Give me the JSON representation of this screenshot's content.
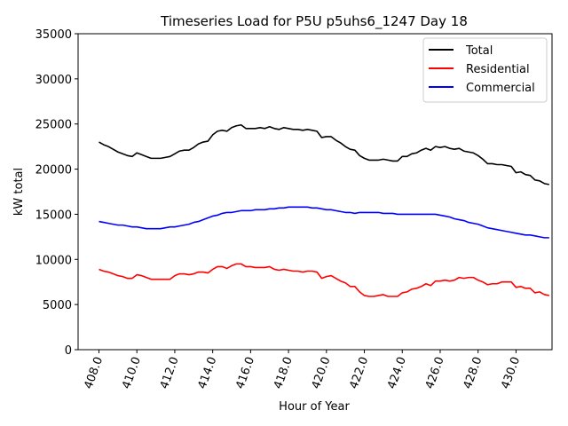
{
  "chart_data": {
    "type": "line",
    "title": "Timeseries Load for P5U p5uhs6_1247  Day 18",
    "xlabel": "Hour of Year",
    "ylabel": "kW total",
    "xlim": [
      406.9,
      431.9
    ],
    "ylim": [
      0,
      35000
    ],
    "xticks": [
      408,
      410,
      412,
      414,
      416,
      418,
      420,
      422,
      424,
      426,
      428,
      430
    ],
    "xtick_labels": [
      "408.0",
      "410.0",
      "412.0",
      "414.0",
      "416.0",
      "418.0",
      "420.0",
      "422.0",
      "424.0",
      "426.0",
      "428.0",
      "430.0"
    ],
    "yticks": [
      0,
      5000,
      10000,
      15000,
      20000,
      25000,
      30000,
      35000
    ],
    "ytick_labels": [
      "0",
      "5000",
      "10000",
      "15000",
      "20000",
      "25000",
      "30000",
      "35000"
    ],
    "legend_position": "top-right",
    "x_start": 408,
    "x_step": 0.25,
    "series": [
      {
        "name": "Total",
        "color": "#000000",
        "values": [
          23000,
          22700,
          22500,
          22200,
          21900,
          21700,
          21500,
          21400,
          21800,
          21600,
          21400,
          21200,
          21200,
          21200,
          21300,
          21400,
          21700,
          22000,
          22100,
          22100,
          22400,
          22800,
          23000,
          23100,
          23800,
          24200,
          24300,
          24200,
          24600,
          24800,
          24900,
          24500,
          24500,
          24500,
          24600,
          24500,
          24700,
          24500,
          24400,
          24600,
          24500,
          24400,
          24400,
          24300,
          24400,
          24300,
          24200,
          23500,
          23600,
          23600,
          23200,
          22900,
          22500,
          22200,
          22100,
          21500,
          21200,
          21000,
          21000,
          21000,
          21100,
          21000,
          20900,
          20900,
          21400,
          21400,
          21700,
          21800,
          22100,
          22300,
          22100,
          22500,
          22400,
          22500,
          22300,
          22200,
          22300,
          22000,
          21900,
          21800,
          21500,
          21100,
          20600,
          20600,
          20500,
          20500,
          20400,
          20300,
          19600,
          19700,
          19400,
          19300,
          18800,
          18700,
          18400,
          18300
        ]
      },
      {
        "name": "Residential",
        "color": "#ff0000",
        "values": [
          8900,
          8700,
          8600,
          8400,
          8200,
          8100,
          7900,
          7900,
          8300,
          8200,
          8000,
          7800,
          7800,
          7800,
          7800,
          7800,
          8200,
          8400,
          8400,
          8300,
          8400,
          8600,
          8600,
          8500,
          8900,
          9200,
          9200,
          9000,
          9300,
          9500,
          9500,
          9200,
          9200,
          9100,
          9100,
          9100,
          9200,
          8900,
          8800,
          8900,
          8800,
          8700,
          8700,
          8600,
          8700,
          8700,
          8600,
          7900,
          8100,
          8200,
          7900,
          7600,
          7400,
          7000,
          7000,
          6400,
          6000,
          5900,
          5900,
          6000,
          6100,
          5900,
          5900,
          5900,
          6300,
          6400,
          6700,
          6800,
          7000,
          7300,
          7100,
          7600,
          7600,
          7700,
          7600,
          7700,
          8000,
          7900,
          8000,
          8000,
          7700,
          7500,
          7200,
          7300,
          7300,
          7500,
          7500,
          7500,
          6900,
          7000,
          6800,
          6800,
          6300,
          6400,
          6100,
          6000
        ]
      },
      {
        "name": "Commercial",
        "color": "#0000ff",
        "values": [
          14200,
          14100,
          14000,
          13900,
          13800,
          13800,
          13700,
          13600,
          13600,
          13500,
          13400,
          13400,
          13400,
          13400,
          13500,
          13600,
          13600,
          13700,
          13800,
          13900,
          14100,
          14200,
          14400,
          14600,
          14800,
          14900,
          15100,
          15200,
          15200,
          15300,
          15400,
          15400,
          15400,
          15500,
          15500,
          15500,
          15600,
          15600,
          15700,
          15700,
          15800,
          15800,
          15800,
          15800,
          15800,
          15700,
          15700,
          15600,
          15500,
          15500,
          15400,
          15300,
          15200,
          15200,
          15100,
          15200,
          15200,
          15200,
          15200,
          15200,
          15100,
          15100,
          15100,
          15000,
          15000,
          15000,
          15000,
          15000,
          15000,
          15000,
          15000,
          15000,
          14900,
          14800,
          14700,
          14500,
          14400,
          14300,
          14100,
          14000,
          13900,
          13700,
          13500,
          13400,
          13300,
          13200,
          13100,
          13000,
          12900,
          12800,
          12700,
          12700,
          12600,
          12500,
          12400,
          12400
        ]
      }
    ]
  }
}
